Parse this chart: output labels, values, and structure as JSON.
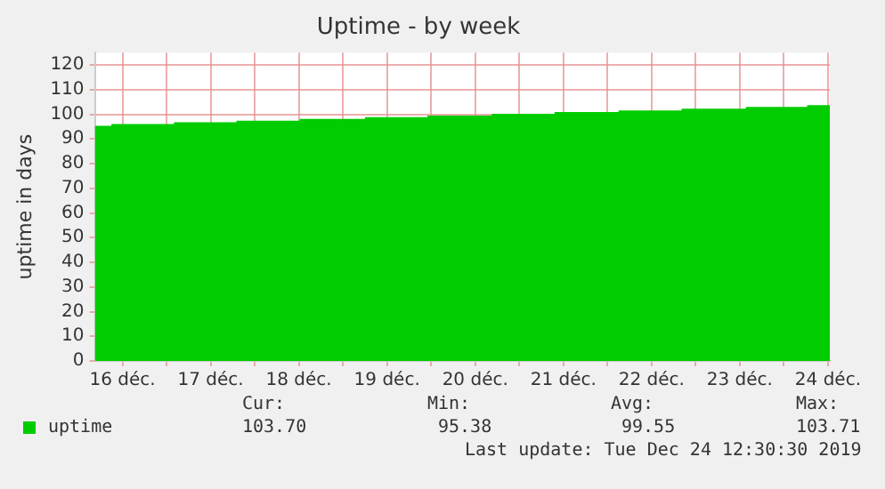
{
  "chart_data": {
    "type": "area",
    "title": "Uptime - by week",
    "ylabel": "uptime in days",
    "series": [
      {
        "name": "uptime",
        "color": "#00cc00",
        "x": [
          "2019-12-16T04:30",
          "2019-12-16T09:00",
          "2019-12-16T09:00",
          "2019-12-17T02:00",
          "2019-12-17T02:00",
          "2019-12-17T19:00",
          "2019-12-17T19:00",
          "2019-12-18T12:15",
          "2019-12-18T12:15",
          "2019-12-19T06:00",
          "2019-12-19T06:00",
          "2019-12-19T23:00",
          "2019-12-19T23:00",
          "2019-12-20T16:30",
          "2019-12-20T16:30",
          "2019-12-21T09:35",
          "2019-12-21T09:35",
          "2019-12-22T03:00",
          "2019-12-22T03:00",
          "2019-12-22T20:10",
          "2019-12-22T20:10",
          "2019-12-23T13:40",
          "2019-12-23T13:40",
          "2019-12-24T06:20",
          "2019-12-24T06:20",
          "2019-12-24T12:30"
        ],
        "values": [
          95.38,
          95.38,
          96.07,
          96.07,
          96.76,
          96.76,
          97.45,
          97.45,
          98.14,
          98.14,
          98.83,
          98.83,
          99.52,
          99.52,
          100.21,
          100.21,
          100.9,
          100.9,
          101.59,
          101.59,
          102.28,
          102.28,
          102.97,
          102.97,
          103.71,
          103.71
        ]
      }
    ],
    "xlim": [
      "2019-12-16T04:30",
      "2019-12-24T12:30"
    ],
    "xticks": [
      {
        "value": "2019-12-16T12:00",
        "label": "16 déc."
      },
      {
        "value": "2019-12-17T00:00",
        "label": null
      },
      {
        "value": "2019-12-17T12:00",
        "label": "17 déc."
      },
      {
        "value": "2019-12-18T00:00",
        "label": null
      },
      {
        "value": "2019-12-18T12:00",
        "label": "18 déc."
      },
      {
        "value": "2019-12-19T00:00",
        "label": null
      },
      {
        "value": "2019-12-19T12:00",
        "label": "19 déc."
      },
      {
        "value": "2019-12-20T00:00",
        "label": null
      },
      {
        "value": "2019-12-20T12:00",
        "label": "20 déc."
      },
      {
        "value": "2019-12-21T00:00",
        "label": null
      },
      {
        "value": "2019-12-21T12:00",
        "label": "21 déc."
      },
      {
        "value": "2019-12-22T00:00",
        "label": null
      },
      {
        "value": "2019-12-22T12:00",
        "label": "22 déc."
      },
      {
        "value": "2019-12-23T00:00",
        "label": null
      },
      {
        "value": "2019-12-23T12:00",
        "label": "23 déc."
      },
      {
        "value": "2019-12-24T00:00",
        "label": null
      },
      {
        "value": "2019-12-24T12:00",
        "label": "24 déc."
      }
    ],
    "ylim": [
      0,
      125
    ],
    "yticks": [
      0,
      10,
      20,
      30,
      40,
      50,
      60,
      70,
      80,
      90,
      100,
      110,
      120
    ],
    "grid": true,
    "legend": "bottom left",
    "annotations": [
      "Cur:",
      "Min:",
      "Avg:",
      "Max:",
      "103.70",
      "95.38",
      "99.55",
      "103.71",
      "Last update: Tue Dec 24 12:30:30 2019"
    ]
  }
}
